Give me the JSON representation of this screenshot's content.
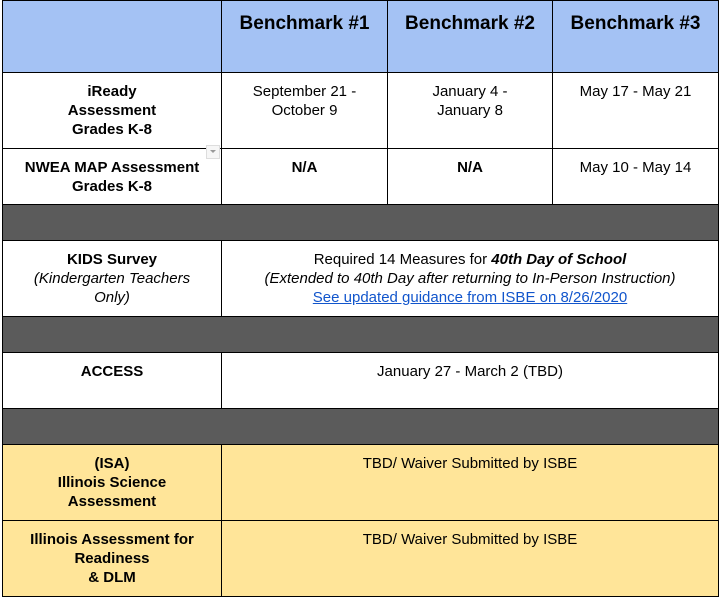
{
  "header": {
    "blank": "",
    "columns": [
      "Benchmark #1",
      "Benchmark #2",
      "Benchmark #3"
    ]
  },
  "iready": {
    "name_lines": [
      "iReady",
      "Assessment",
      "Grades K-8"
    ],
    "b1_lines": [
      "September 21 -",
      "October 9"
    ],
    "b2_lines": [
      "January 4 -",
      "January 8"
    ],
    "b3": "May 17 - May 21"
  },
  "nwea": {
    "name_lines": [
      "NWEA MAP Assessment",
      "Grades K-8"
    ],
    "b1": "N/A",
    "b2": "N/A",
    "b3": "May 10 - May 14"
  },
  "kids": {
    "name": "KIDS Survey",
    "note_lines": [
      "(Kindergarten Teachers",
      "Only)"
    ],
    "line1_prefix": "Required 14 Measures for ",
    "line1_emph": "40th Day of School",
    "line2": "(Extended to 40th Day after returning to In-Person Instruction)",
    "link": "See updated guidance from ISBE on 8/26/2020"
  },
  "access": {
    "name": "ACCESS",
    "dates": "January 27 - March 2 (TBD)"
  },
  "isa": {
    "name_lines": [
      "(ISA)",
      "Illinois Science",
      "Assessment"
    ],
    "status": "TBD/ Waiver Submitted by ISBE"
  },
  "iar": {
    "name_lines": [
      "Illinois Assessment for",
      "Readiness",
      "& DLM"
    ],
    "status": "TBD/ Waiver Submitted by ISBE"
  },
  "colors": {
    "header_bg": "#a4c2f4",
    "divider_bg": "#5b5b5b",
    "highlight_bg": "#ffe599",
    "link": "#1155cc"
  }
}
